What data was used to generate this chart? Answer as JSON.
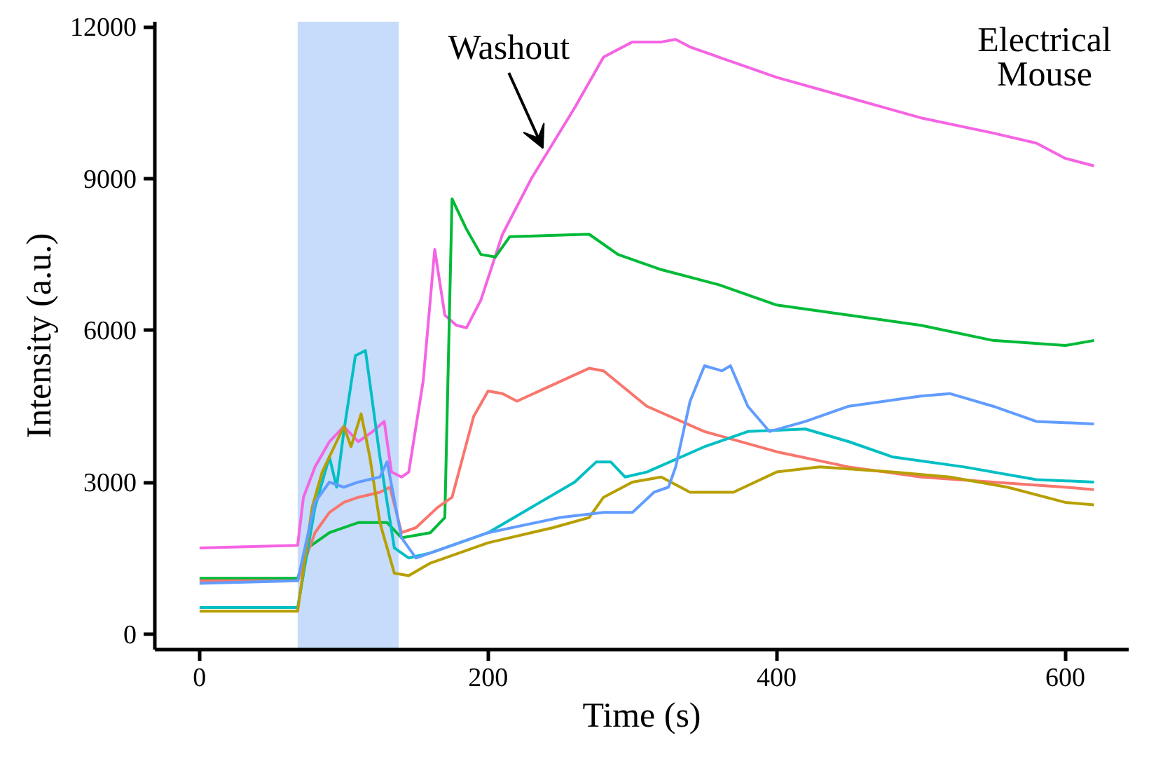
{
  "chart_data": {
    "type": "line",
    "xlabel": "Time (s)",
    "ylabel": "Intensity (a.u.)",
    "xlim": [
      -31,
      644
    ],
    "ylim": [
      -310,
      12100
    ],
    "xticks": [
      0,
      200,
      400,
      600
    ],
    "yticks": [
      0,
      3000,
      6000,
      9000,
      12000
    ],
    "grid": false,
    "marker": "none",
    "line_style": "solid",
    "bands": [
      {
        "axis": "x",
        "from": 68,
        "to": 138,
        "color": "#c6dcfa"
      }
    ],
    "annotations": [
      {
        "text": "Washout",
        "x": 238,
        "y": 9600
      },
      "Electrical\nMouse"
    ],
    "series": [
      {
        "color": "#f564e3",
        "x": [
          0,
          68,
          72,
          80,
          90,
          100,
          110,
          120,
          128,
          133,
          140,
          145,
          155,
          163,
          170,
          178,
          185,
          195,
          210,
          230,
          260,
          280,
          300,
          320,
          330,
          340,
          360,
          400,
          450,
          500,
          550,
          580,
          600,
          620
        ],
        "values": [
          1700,
          1750,
          2700,
          3300,
          3800,
          4100,
          3800,
          4000,
          4200,
          3200,
          3100,
          3200,
          5000,
          7600,
          6300,
          6100,
          6050,
          6600,
          7900,
          9000,
          10400,
          11400,
          11700,
          11700,
          11750,
          11600,
          11400,
          11000,
          10600,
          10200,
          9900,
          9700,
          9400,
          9250
        ]
      },
      {
        "color": "#00ba38",
        "x": [
          0,
          68,
          75,
          90,
          110,
          130,
          140,
          160,
          170,
          175,
          185,
          195,
          205,
          215,
          270,
          290,
          320,
          360,
          400,
          450,
          500,
          550,
          600,
          620
        ],
        "values": [
          1100,
          1100,
          1700,
          2000,
          2200,
          2200,
          1900,
          2000,
          2300,
          8600,
          8000,
          7500,
          7450,
          7850,
          7900,
          7500,
          7200,
          6900,
          6500,
          6300,
          6100,
          5800,
          5700,
          5800
        ]
      },
      {
        "color": "#f8766d",
        "x": [
          0,
          68,
          80,
          90,
          100,
          110,
          125,
          132,
          140,
          150,
          165,
          175,
          190,
          200,
          210,
          220,
          270,
          280,
          310,
          350,
          400,
          450,
          500,
          550,
          600,
          620
        ],
        "values": [
          1050,
          1050,
          2000,
          2400,
          2600,
          2700,
          2800,
          2900,
          2000,
          2100,
          2500,
          2700,
          4300,
          4800,
          4750,
          4600,
          5250,
          5200,
          4500,
          4000,
          3600,
          3300,
          3100,
          3000,
          2900,
          2850
        ]
      },
      {
        "color": "#00bfc4",
        "x": [
          0,
          68,
          80,
          90,
          95,
          100,
          108,
          115,
          125,
          135,
          145,
          160,
          200,
          260,
          275,
          285,
          295,
          310,
          350,
          380,
          420,
          450,
          480,
          530,
          580,
          620
        ],
        "values": [
          520,
          520,
          2500,
          3500,
          2900,
          4000,
          5500,
          5600,
          3500,
          1700,
          1500,
          1600,
          2000,
          3000,
          3400,
          3400,
          3100,
          3200,
          3700,
          4000,
          4050,
          3800,
          3500,
          3300,
          3050,
          3000
        ]
      },
      {
        "color": "#b79f00",
        "x": [
          0,
          68,
          78,
          85,
          95,
          100,
          105,
          112,
          118,
          125,
          135,
          145,
          160,
          200,
          245,
          270,
          280,
          300,
          320,
          340,
          370,
          400,
          430,
          480,
          520,
          560,
          600,
          620
        ],
        "values": [
          450,
          450,
          2500,
          3200,
          3800,
          4100,
          3700,
          4350,
          3500,
          2200,
          1200,
          1150,
          1400,
          1800,
          2100,
          2300,
          2700,
          3000,
          3100,
          2800,
          2800,
          3200,
          3300,
          3200,
          3100,
          2900,
          2600,
          2550
        ]
      },
      {
        "color": "#619cff",
        "x": [
          0,
          68,
          80,
          90,
          100,
          110,
          125,
          130,
          140,
          150,
          200,
          250,
          280,
          300,
          315,
          325,
          330,
          340,
          350,
          362,
          368,
          380,
          395,
          420,
          450,
          500,
          520,
          550,
          580,
          620
        ],
        "values": [
          1000,
          1050,
          2600,
          3000,
          2900,
          3000,
          3100,
          3400,
          1900,
          1500,
          2000,
          2300,
          2400,
          2400,
          2800,
          2900,
          3300,
          4600,
          5300,
          5200,
          5300,
          4500,
          4000,
          4200,
          4500,
          4700,
          4750,
          4500,
          4200,
          4150
        ]
      }
    ]
  }
}
